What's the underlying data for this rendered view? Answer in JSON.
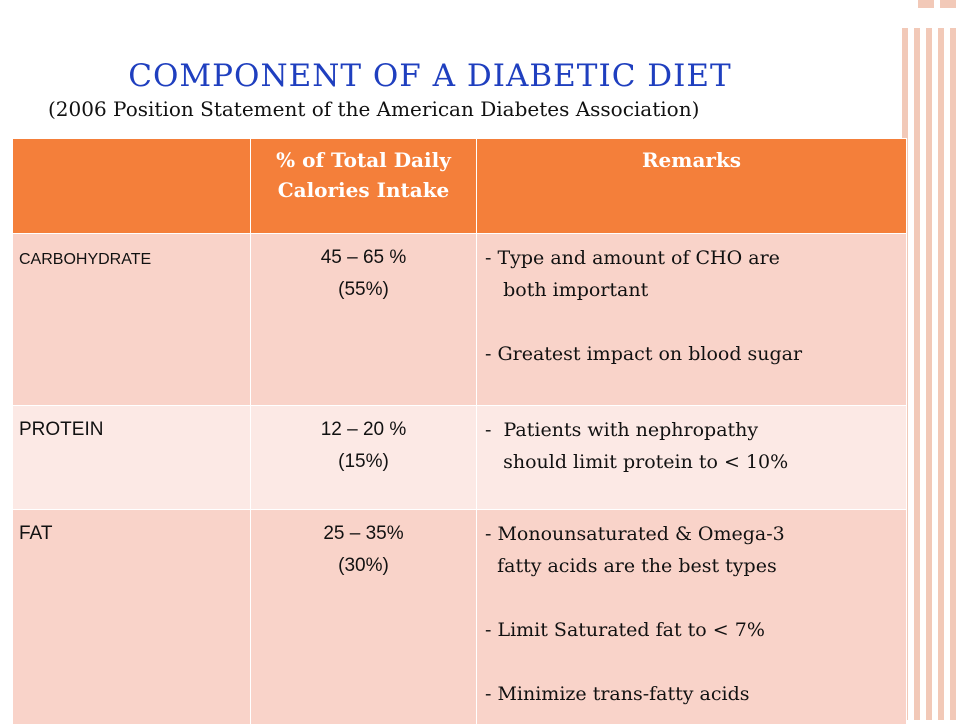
{
  "slide": {
    "title": "COMPONENT  OF  A  DIABETIC  DIET",
    "subtitle": "(2006 Position Statement of  the American Diabetes Association)"
  },
  "table": {
    "headers": [
      "",
      "% of Total Daily Calories Intake",
      "Remarks"
    ],
    "rows": [
      {
        "nutrient": "CARBOHYDRATE",
        "range": "45 – 65 %",
        "typical": "(55%)",
        "remarks": [
          "- Type and amount of CHO are\n   both important",
          "- Greatest impact on blood sugar"
        ]
      },
      {
        "nutrient": "PROTEIN",
        "range": "12 – 20 %",
        "typical": "(15%)",
        "remarks": [
          "-  Patients with nephropathy\n   should limit protein to < 10%"
        ]
      },
      {
        "nutrient": "FAT",
        "range": "25 – 35%",
        "typical": "(30%)",
        "remarks": [
          "- Monounsaturated & Omega-3\n  fatty acids are the best types",
          "- Limit Saturated fat to < 7%",
          "- Minimize trans-fatty acids"
        ]
      }
    ]
  },
  "colors": {
    "title": "#1f3fbf",
    "header_bg": "#f47f3a",
    "row_bg_dark": "#f9d3c9",
    "row_bg_light": "#fce9e5"
  }
}
